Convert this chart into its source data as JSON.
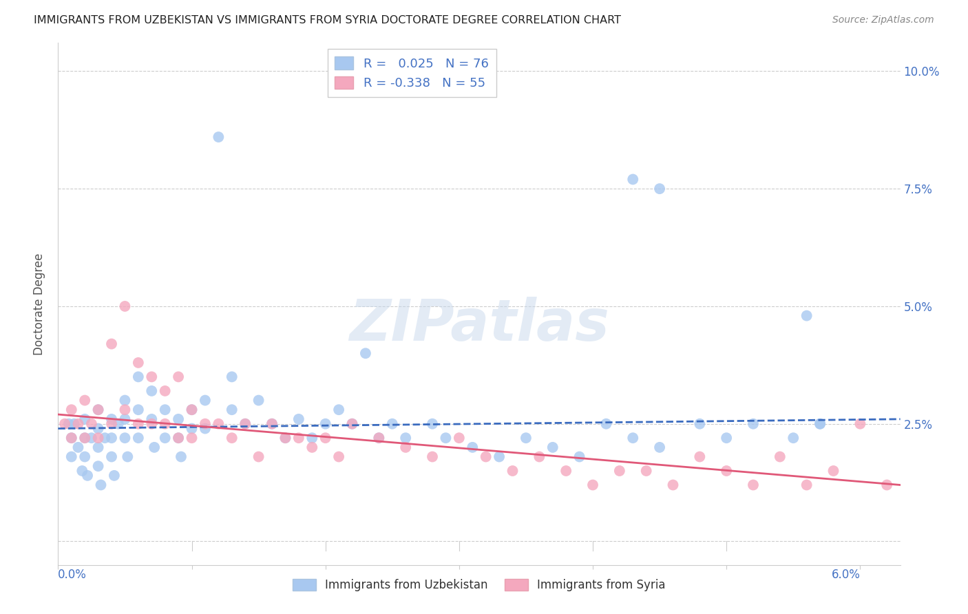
{
  "title": "IMMIGRANTS FROM UZBEKISTAN VS IMMIGRANTS FROM SYRIA DOCTORATE DEGREE CORRELATION CHART",
  "source": "Source: ZipAtlas.com",
  "ylabel": "Doctorate Degree",
  "xlim": [
    0.0,
    0.063
  ],
  "ylim": [
    -0.005,
    0.106
  ],
  "background_color": "#ffffff",
  "grid_color": "#cccccc",
  "uzbekistan_color": "#a8c8f0",
  "syria_color": "#f4a8be",
  "uzbekistan_line_color": "#3a6bbf",
  "syria_line_color": "#e05878",
  "legend_R_uzbekistan": "0.025",
  "legend_N_uzbekistan": "76",
  "legend_R_syria": "-0.338",
  "legend_N_syria": "55",
  "watermark": "ZIPatlas",
  "uzbekistan_x": [
    0.0008,
    0.001,
    0.001,
    0.0012,
    0.0015,
    0.0018,
    0.002,
    0.002,
    0.002,
    0.0022,
    0.0025,
    0.003,
    0.003,
    0.003,
    0.003,
    0.0032,
    0.0035,
    0.004,
    0.004,
    0.004,
    0.0042,
    0.0045,
    0.005,
    0.005,
    0.005,
    0.0052,
    0.006,
    0.006,
    0.006,
    0.007,
    0.007,
    0.0072,
    0.008,
    0.008,
    0.009,
    0.009,
    0.0092,
    0.01,
    0.01,
    0.011,
    0.011,
    0.012,
    0.013,
    0.013,
    0.014,
    0.015,
    0.016,
    0.017,
    0.018,
    0.019,
    0.02,
    0.021,
    0.022,
    0.023,
    0.024,
    0.025,
    0.026,
    0.028,
    0.029,
    0.031,
    0.033,
    0.035,
    0.037,
    0.039,
    0.041,
    0.043,
    0.045,
    0.048,
    0.05,
    0.052,
    0.055,
    0.057,
    0.043,
    0.057,
    0.045,
    0.056
  ],
  "uzbekistan_y": [
    0.025,
    0.022,
    0.018,
    0.025,
    0.02,
    0.015,
    0.026,
    0.022,
    0.018,
    0.014,
    0.022,
    0.028,
    0.024,
    0.02,
    0.016,
    0.012,
    0.022,
    0.026,
    0.022,
    0.018,
    0.014,
    0.025,
    0.03,
    0.026,
    0.022,
    0.018,
    0.035,
    0.028,
    0.022,
    0.032,
    0.026,
    0.02,
    0.028,
    0.022,
    0.026,
    0.022,
    0.018,
    0.028,
    0.024,
    0.03,
    0.024,
    0.086,
    0.035,
    0.028,
    0.025,
    0.03,
    0.025,
    0.022,
    0.026,
    0.022,
    0.025,
    0.028,
    0.025,
    0.04,
    0.022,
    0.025,
    0.022,
    0.025,
    0.022,
    0.02,
    0.018,
    0.022,
    0.02,
    0.018,
    0.025,
    0.022,
    0.02,
    0.025,
    0.022,
    0.025,
    0.022,
    0.025,
    0.077,
    0.025,
    0.075,
    0.048
  ],
  "syria_x": [
    0.0005,
    0.001,
    0.001,
    0.0015,
    0.002,
    0.002,
    0.0025,
    0.003,
    0.003,
    0.004,
    0.004,
    0.005,
    0.005,
    0.006,
    0.006,
    0.007,
    0.007,
    0.008,
    0.008,
    0.009,
    0.009,
    0.01,
    0.01,
    0.011,
    0.012,
    0.013,
    0.014,
    0.015,
    0.016,
    0.017,
    0.018,
    0.019,
    0.02,
    0.021,
    0.022,
    0.024,
    0.026,
    0.028,
    0.03,
    0.032,
    0.034,
    0.036,
    0.038,
    0.04,
    0.042,
    0.044,
    0.046,
    0.048,
    0.05,
    0.052,
    0.054,
    0.056,
    0.058,
    0.06,
    0.062
  ],
  "syria_y": [
    0.025,
    0.028,
    0.022,
    0.025,
    0.03,
    0.022,
    0.025,
    0.028,
    0.022,
    0.042,
    0.025,
    0.05,
    0.028,
    0.038,
    0.025,
    0.035,
    0.025,
    0.032,
    0.025,
    0.035,
    0.022,
    0.028,
    0.022,
    0.025,
    0.025,
    0.022,
    0.025,
    0.018,
    0.025,
    0.022,
    0.022,
    0.02,
    0.022,
    0.018,
    0.025,
    0.022,
    0.02,
    0.018,
    0.022,
    0.018,
    0.015,
    0.018,
    0.015,
    0.012,
    0.015,
    0.015,
    0.012,
    0.018,
    0.015,
    0.012,
    0.018,
    0.012,
    0.015,
    0.025,
    0.012
  ],
  "uzb_line_x": [
    0.0,
    0.063
  ],
  "uzb_line_y": [
    0.024,
    0.026
  ],
  "syr_line_x": [
    0.0,
    0.063
  ],
  "syr_line_y": [
    0.027,
    0.012
  ],
  "ytick_vals": [
    0.0,
    0.025,
    0.05,
    0.075,
    0.1
  ],
  "ytick_labels": [
    "",
    "2.5%",
    "5.0%",
    "7.5%",
    "10.0%"
  ],
  "xtick_vals": [
    0.0,
    0.01,
    0.02,
    0.03,
    0.04,
    0.05,
    0.06
  ]
}
